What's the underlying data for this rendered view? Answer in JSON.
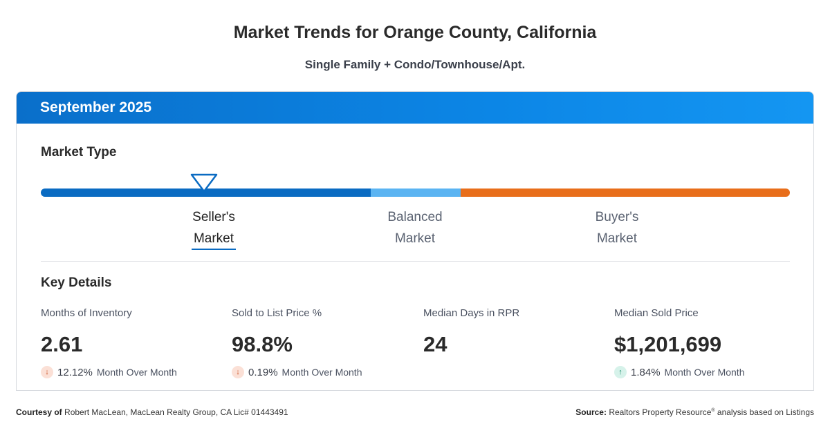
{
  "page": {
    "title": "Market Trends for Orange County, California",
    "subtitle": "Single Family + Condo/Townhouse/Apt."
  },
  "card": {
    "period": "September 2025",
    "market_type_title": "Market Type",
    "market_scale": {
      "current": "Seller's Market",
      "segments": [
        {
          "name": "seller",
          "color": "#0a6bc2"
        },
        {
          "name": "balanced",
          "color": "#5bb4f2"
        },
        {
          "name": "buyer",
          "color": "#e86e1b"
        }
      ],
      "labels": {
        "seller_line1": "Seller's",
        "seller_line2": "Market",
        "balanced_line1": "Balanced",
        "balanced_line2": "Market",
        "buyer_line1": "Buyer's",
        "buyer_line2": "Market"
      }
    },
    "key_details_title": "Key Details",
    "stats": [
      {
        "label": "Months of Inventory",
        "value": "2.61",
        "direction": "down",
        "change": "12.12%",
        "period": "Month Over Month"
      },
      {
        "label": "Sold to List Price %",
        "value": "98.8%",
        "direction": "down",
        "change": "0.19%",
        "period": "Month Over Month"
      },
      {
        "label": "Median Days in RPR",
        "value": "24",
        "direction": "",
        "change": "",
        "period": ""
      },
      {
        "label": "Median Sold Price",
        "value": "$1,201,699",
        "direction": "up",
        "change": "1.84%",
        "period": "Month Over Month"
      }
    ]
  },
  "footer": {
    "courtesy_label": "Courtesy of",
    "courtesy_text": "Robert MacLean, MacLean Realty Group, CA Lic# 01443491",
    "source_label": "Source:",
    "source_text": "Realtors Property Resource",
    "source_mark": "®",
    "source_suffix": "analysis based on Listings"
  },
  "icons": {
    "down_arrow": "arrow-down-icon",
    "up_arrow": "arrow-up-icon",
    "marker": "triangle-marker-icon"
  }
}
